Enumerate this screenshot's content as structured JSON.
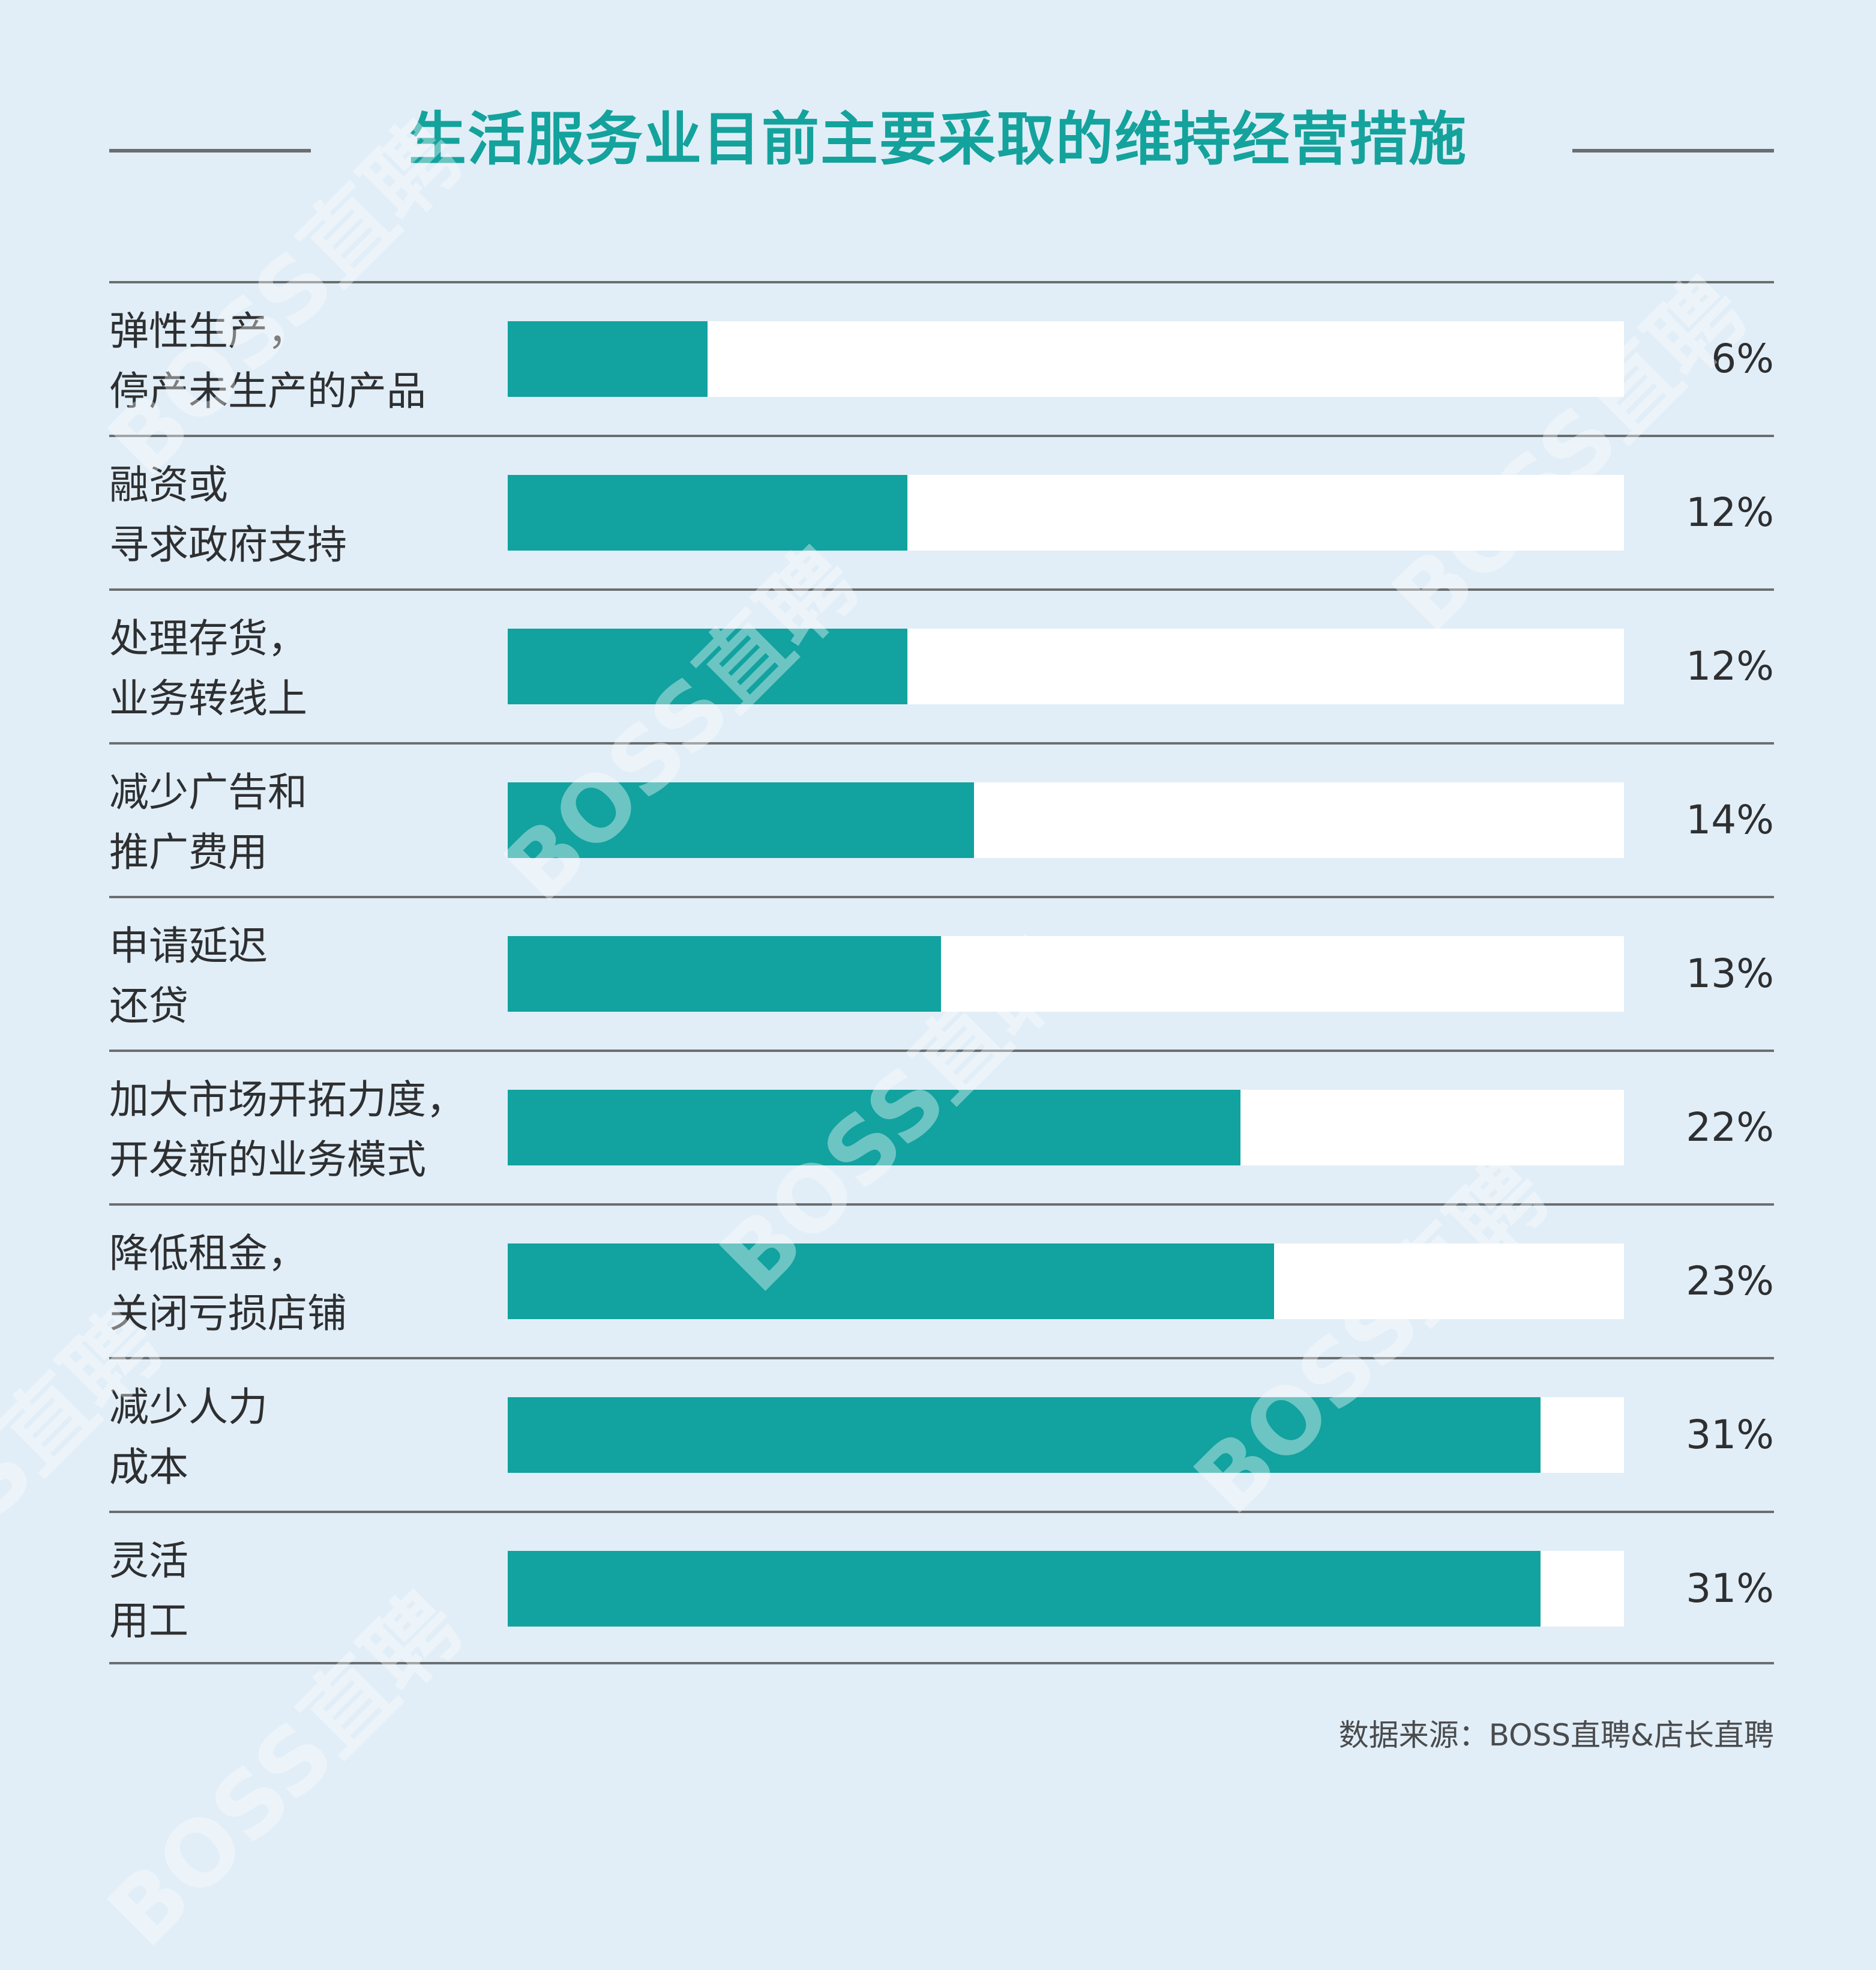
{
  "chart_data": {
    "type": "bar",
    "orientation": "horizontal",
    "title": "生活服务业目前主要采取的维持经营措施",
    "categories": [
      [
        "弹性生产，",
        "停产未生产的产品"
      ],
      [
        "融资或",
        "寻求政府支持"
      ],
      [
        "处理存货，",
        "业务转线上"
      ],
      [
        "减少广告和",
        "推广费用"
      ],
      [
        "申请延迟",
        "还贷"
      ],
      [
        "加大市场开拓力度，",
        "开发新的业务模式"
      ],
      [
        "降低租金，",
        "关闭亏损店铺"
      ],
      [
        "减少人力",
        "成本"
      ],
      [
        "灵活",
        "用工"
      ]
    ],
    "values": [
      6,
      12,
      12,
      14,
      13,
      22,
      23,
      31,
      31
    ],
    "value_labels": [
      "6%",
      "12%",
      "12%",
      "14%",
      "13%",
      "22%",
      "23%",
      "31%",
      "31%"
    ],
    "xlim": [
      0,
      33.5
    ],
    "source": "数据来源：BOSS直聘&店长直聘",
    "colors": {
      "bar": "#12a29f",
      "track": "#ffffff",
      "title": "#14a29c",
      "background": "#e1eef7"
    }
  },
  "watermark": "BOSS直聘"
}
